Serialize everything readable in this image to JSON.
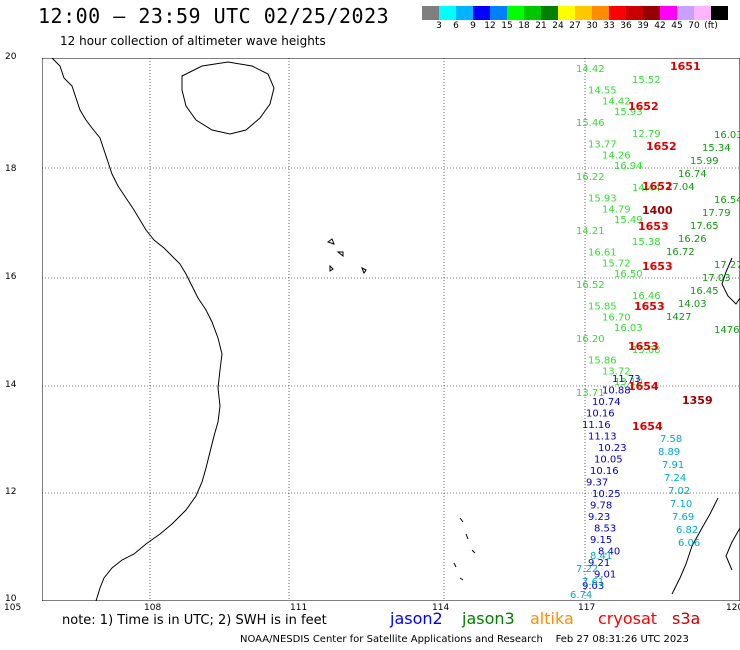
{
  "header": {
    "title": "12:00 – 23:59 UTC 02/25/2023",
    "subtitle": "12 hour collection of altimeter wave heights"
  },
  "legend": {
    "colors": [
      "#7f7f7f",
      "#00ffff",
      "#00b4ff",
      "#0000ff",
      "#0080ff",
      "#00ff00",
      "#00c800",
      "#008000",
      "#ffff00",
      "#ffc800",
      "#ff8c00",
      "#ff0000",
      "#c80000",
      "#960000",
      "#ff00ff",
      "#c8a0ff",
      "#ffb4ff",
      "#000000"
    ],
    "ticks": [
      "3",
      "6",
      "9",
      "12",
      "15",
      "18",
      "21",
      "24",
      "27",
      "30",
      "33",
      "36",
      "39",
      "42",
      "45",
      "70",
      "(ft)"
    ]
  },
  "axes": {
    "lon_labels": [
      "105",
      "108",
      "111",
      "114",
      "117",
      "120"
    ],
    "lat_labels": [
      "20",
      "18",
      "16",
      "14",
      "12",
      "10"
    ]
  },
  "readings": {
    "green_bright": [
      "14.42",
      "15.52",
      "14.55",
      "14.42",
      "15.93",
      "15.46",
      "12.79",
      "13.77",
      "14.26",
      "16.94",
      "16.22",
      "14.44",
      "15.93",
      "14.79",
      "15.49",
      "14.21",
      "15.38",
      "16.61",
      "15.72",
      "16.50",
      "16.52",
      "16.46",
      "15.85",
      "16.70",
      "16.03",
      "16.20",
      "15.68",
      "15.86",
      "13.72",
      "13.10",
      "13.71"
    ],
    "green_dark": [
      "16.03",
      "15.34",
      "15.99",
      "16.74",
      "17.04",
      "16.54",
      "17.79",
      "17.65",
      "16.26",
      "16.72",
      "17.27",
      "17.03",
      "16.45",
      "14.03",
      "1427",
      "1476"
    ],
    "red": [
      "1651",
      "1652",
      "1652",
      "1652",
      "1653",
      "1653",
      "1653",
      "1653",
      "1654",
      "1654"
    ],
    "dark_red": [
      "1400",
      "1359"
    ],
    "blue": [
      "11.73",
      "10.88",
      "10.74",
      "10.16",
      "11.16",
      "11.13",
      "10.23",
      "10.05",
      "10.16",
      "9.37",
      "10.25",
      "9.78",
      "9.23",
      "8.53",
      "9.15",
      "8.40",
      "9.21",
      "9.01",
      "9.03"
    ],
    "cyan": [
      "7.58",
      "8.89",
      "7.91",
      "7.24",
      "7.02",
      "7.10",
      "7.69",
      "6.82",
      "6.06",
      "8.41",
      "7.22",
      "7.61",
      "6.74"
    ]
  },
  "footer": {
    "note": "note: 1) Time is in UTC; 2) SWH is in feet",
    "satellites": [
      {
        "name": "jason2",
        "color": "#0000ff"
      },
      {
        "name": "jason3",
        "color": "#008000"
      },
      {
        "name": "altika",
        "color": "#ff8c00"
      },
      {
        "name": "cryosat",
        "color": "#ff0000"
      },
      {
        "name": "s3a",
        "color": "#c80000"
      }
    ],
    "credit": "NOAA/NESDIS Center for Satellite Applications and Research",
    "timestamp": "Feb 27 08:31:26 UTC 2023"
  }
}
